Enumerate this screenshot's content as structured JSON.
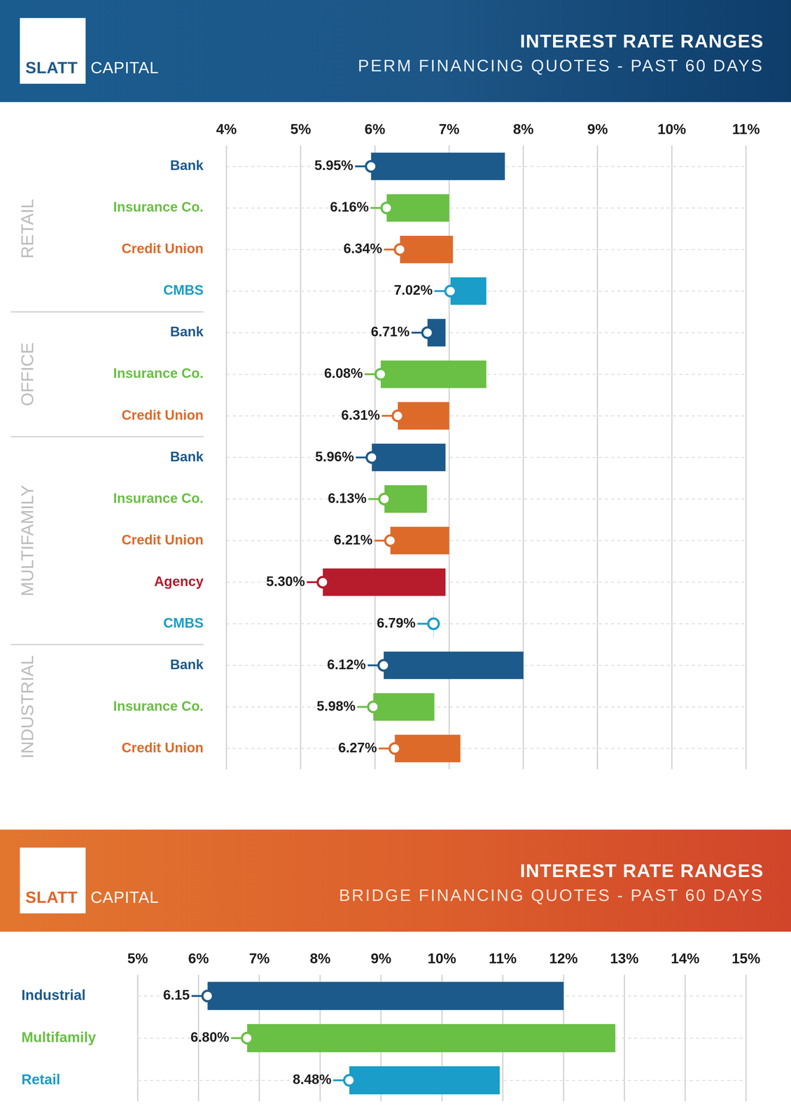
{
  "chart_data": [
    {
      "type": "bar",
      "logo": [
        "SLATT",
        "CAPITAL"
      ],
      "title": "INTEREST RATE RANGES",
      "subtitle": "PERM FINANCING QUOTES - PAST 60 DAYS",
      "orientation": "horizontal",
      "categories": [
        "Bank",
        "Insurance Co.",
        "Credit Union",
        "CMBS",
        "Bank",
        "Insurance Co.",
        "Credit Union",
        "Bank",
        "Insurance Co.",
        "Credit Union",
        "Agency",
        "CMBS",
        "Bank",
        "Insurance Co.",
        "Credit Union"
      ],
      "group": [
        "RETAIL",
        "RETAIL",
        "RETAIL",
        "RETAIL",
        "OFFICE",
        "OFFICE",
        "OFFICE",
        "MULTIFAMILY",
        "MULTIFAMILY",
        "MULTIFAMILY",
        "MULTIFAMILY",
        "MULTIFAMILY",
        "INDUSTRIAL",
        "INDUSTRIAL",
        "INDUSTRIAL"
      ],
      "values": [
        [
          5.95,
          7.75
        ],
        [
          6.16,
          7.0
        ],
        [
          6.34,
          7.05
        ],
        [
          7.02,
          7.5
        ],
        [
          6.71,
          6.95
        ],
        [
          6.08,
          7.5
        ],
        [
          6.31,
          7.0
        ],
        [
          5.96,
          6.95
        ],
        [
          6.13,
          6.7
        ],
        [
          6.21,
          7.0
        ],
        [
          5.3,
          6.95
        ],
        [
          6.79,
          6.79
        ],
        [
          6.12,
          8.0
        ],
        [
          5.98,
          6.8
        ],
        [
          6.27,
          7.15
        ]
      ],
      "value_labels": [
        "5.95%",
        "6.16%",
        "6.34%",
        "7.02%",
        "6.71%",
        "6.08%",
        "6.31%",
        "5.96%",
        "6.13%",
        "6.21%",
        "5.30%",
        "6.79%",
        "6.12%",
        "5.98%",
        "6.27%"
      ],
      "colors": [
        "#1d5a8c",
        "#6abf45",
        "#de6a2a",
        "#1a9dc8",
        "#1d5a8c",
        "#6abf45",
        "#de6a2a",
        "#1d5a8c",
        "#6abf45",
        "#de6a2a",
        "#b71c2c",
        "#1a9dc8",
        "#1d5a8c",
        "#6abf45",
        "#de6a2a"
      ],
      "xlim": [
        4,
        11
      ],
      "xticks": [
        {
          "value": 4,
          "label": "4%"
        },
        {
          "value": 5,
          "label": "5%"
        },
        {
          "value": 6,
          "label": "6%"
        },
        {
          "value": 7,
          "label": "7%"
        },
        {
          "value": 8,
          "label": "8%"
        },
        {
          "value": 9,
          "label": "9%"
        },
        {
          "value": 10,
          "label": "10%"
        },
        {
          "value": 11,
          "label": "11%"
        }
      ],
      "grid": true,
      "data_labels": true
    },
    {
      "type": "bar",
      "logo": [
        "SLATT",
        "CAPITAL"
      ],
      "title": "INTEREST RATE RANGES",
      "subtitle": "BRIDGE FINANCING QUOTES - PAST 60 DAYS",
      "orientation": "horizontal",
      "categories": [
        "Industrial",
        "Multifamily",
        "Retail"
      ],
      "values": [
        [
          6.15,
          12.0
        ],
        [
          6.8,
          12.85
        ],
        [
          8.48,
          10.95
        ]
      ],
      "value_labels": [
        "6.15",
        "6.80%",
        "8.48%"
      ],
      "colors": [
        "#1d5a8c",
        "#6abf45",
        "#1a9dc8"
      ],
      "xlim": [
        5,
        15
      ],
      "xticks": [
        {
          "value": 5,
          "label": "5%"
        },
        {
          "value": 6,
          "label": "6%"
        },
        {
          "value": 7,
          "label": "7%"
        },
        {
          "value": 8,
          "label": "8%"
        },
        {
          "value": 9,
          "label": "9%"
        },
        {
          "value": 10,
          "label": "10%"
        },
        {
          "value": 11,
          "label": "11%"
        },
        {
          "value": 12,
          "label": "12%"
        },
        {
          "value": 13,
          "label": "13%"
        },
        {
          "value": 14,
          "label": "14%"
        },
        {
          "value": 15,
          "label": "15%"
        }
      ],
      "grid": true,
      "data_labels": true
    }
  ]
}
